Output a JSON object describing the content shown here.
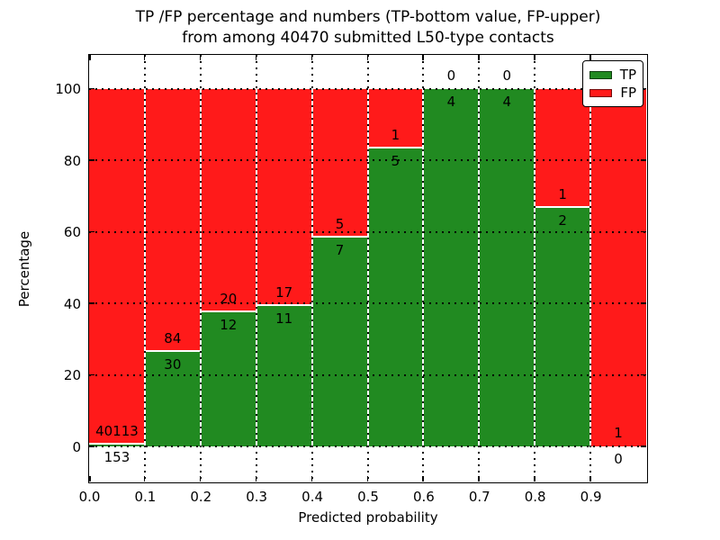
{
  "figure": {
    "title_line1": "TP /FP percentage and numbers (TP-bottom value, FP-upper)",
    "title_line2": "from among 40470 submitted L50-type contacts"
  },
  "chart_data": {
    "type": "bar",
    "stacked": true,
    "title": "TP /FP percentage and numbers (TP-bottom value, FP-upper) from among 40470 submitted L50-type contacts",
    "xlabel": "Predicted probability",
    "ylabel": "Percentage",
    "xlim": [
      0.0,
      1.0
    ],
    "ylim": [
      -10,
      110
    ],
    "grid": true,
    "bin_width": 0.1,
    "x_ticks": [
      0.0,
      0.1,
      0.2,
      0.3,
      0.4,
      0.5,
      0.6,
      0.7,
      0.8,
      0.9
    ],
    "x_tick_labels": [
      "0.0",
      "0.1",
      "0.2",
      "0.3",
      "0.4",
      "0.5",
      "0.6",
      "0.7",
      "0.8",
      "0.9"
    ],
    "y_ticks": [
      0,
      20,
      40,
      60,
      80,
      100
    ],
    "y_tick_labels": [
      "0",
      "20",
      "40",
      "60",
      "80",
      "100"
    ],
    "total_contacts": 40470,
    "series": [
      {
        "name": "TP",
        "color": "#218a21",
        "values": [
          153,
          30,
          12,
          11,
          7,
          5,
          4,
          4,
          2,
          0
        ]
      },
      {
        "name": "FP",
        "color": "#ff1a1a",
        "values": [
          40113,
          84,
          20,
          17,
          5,
          1,
          0,
          0,
          1,
          1
        ]
      }
    ],
    "bins": [
      {
        "range": "0.0-0.1",
        "tp": 153,
        "fp": 40113,
        "tp_pct": 0.38,
        "fp_pct": 99.62
      },
      {
        "range": "0.1-0.2",
        "tp": 30,
        "fp": 84,
        "tp_pct": 26.32,
        "fp_pct": 73.68
      },
      {
        "range": "0.2-0.3",
        "tp": 12,
        "fp": 20,
        "tp_pct": 37.5,
        "fp_pct": 62.5
      },
      {
        "range": "0.3-0.4",
        "tp": 11,
        "fp": 17,
        "tp_pct": 39.29,
        "fp_pct": 60.71
      },
      {
        "range": "0.4-0.5",
        "tp": 7,
        "fp": 5,
        "tp_pct": 58.33,
        "fp_pct": 41.67
      },
      {
        "range": "0.5-0.6",
        "tp": 5,
        "fp": 1,
        "tp_pct": 83.33,
        "fp_pct": 16.67
      },
      {
        "range": "0.6-0.7",
        "tp": 4,
        "fp": 0,
        "tp_pct": 100,
        "fp_pct": 0
      },
      {
        "range": "0.7-0.8",
        "tp": 4,
        "fp": 0,
        "tp_pct": 100,
        "fp_pct": 0
      },
      {
        "range": "0.8-0.9",
        "tp": 2,
        "fp": 1,
        "tp_pct": 66.67,
        "fp_pct": 33.33
      },
      {
        "range": "0.9-1.0",
        "tp": 0,
        "fp": 1,
        "tp_pct": 0,
        "fp_pct": 100
      }
    ],
    "legend": {
      "position": "upper right",
      "entries": [
        {
          "label": "TP",
          "color": "#218a21"
        },
        {
          "label": "FP",
          "color": "#ff1a1a"
        }
      ]
    }
  }
}
